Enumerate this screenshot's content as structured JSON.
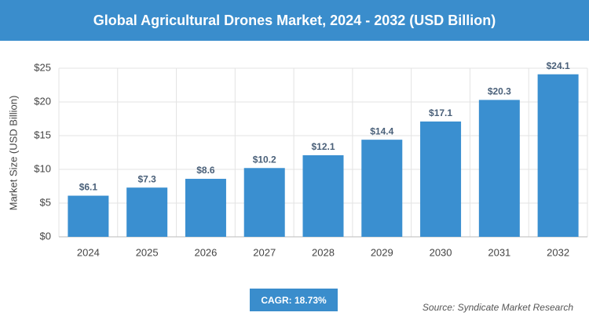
{
  "chart_data": {
    "type": "bar",
    "title": "Global Agricultural Drones Market, 2024 - 2032 (USD Billion)",
    "y_label": "Market Size (USD Billion)",
    "categories": [
      "2024",
      "2025",
      "2026",
      "2027",
      "2028",
      "2029",
      "2030",
      "2031",
      "2032"
    ],
    "values": [
      6.1,
      7.3,
      8.6,
      10.2,
      12.1,
      14.4,
      17.1,
      20.3,
      24.1
    ],
    "value_labels": [
      "$6.1",
      "$7.3",
      "$8.6",
      "$10.2",
      "$12.1",
      "$14.4",
      "$17.1",
      "$20.3",
      "$24.1"
    ],
    "color": "#3a8fd0",
    "ylim": [
      0,
      25
    ],
    "yticks": [
      {
        "value": 0,
        "label": "$0"
      },
      {
        "value": 5,
        "label": "$5"
      },
      {
        "value": 10,
        "label": "$10"
      },
      {
        "value": 15,
        "label": "$15"
      },
      {
        "value": 20,
        "label": "$20"
      },
      {
        "value": 25,
        "label": "$25"
      }
    ],
    "grid": true,
    "cagr": "CAGR: 18.73%",
    "source": "Source: Syndicate Market Research"
  }
}
